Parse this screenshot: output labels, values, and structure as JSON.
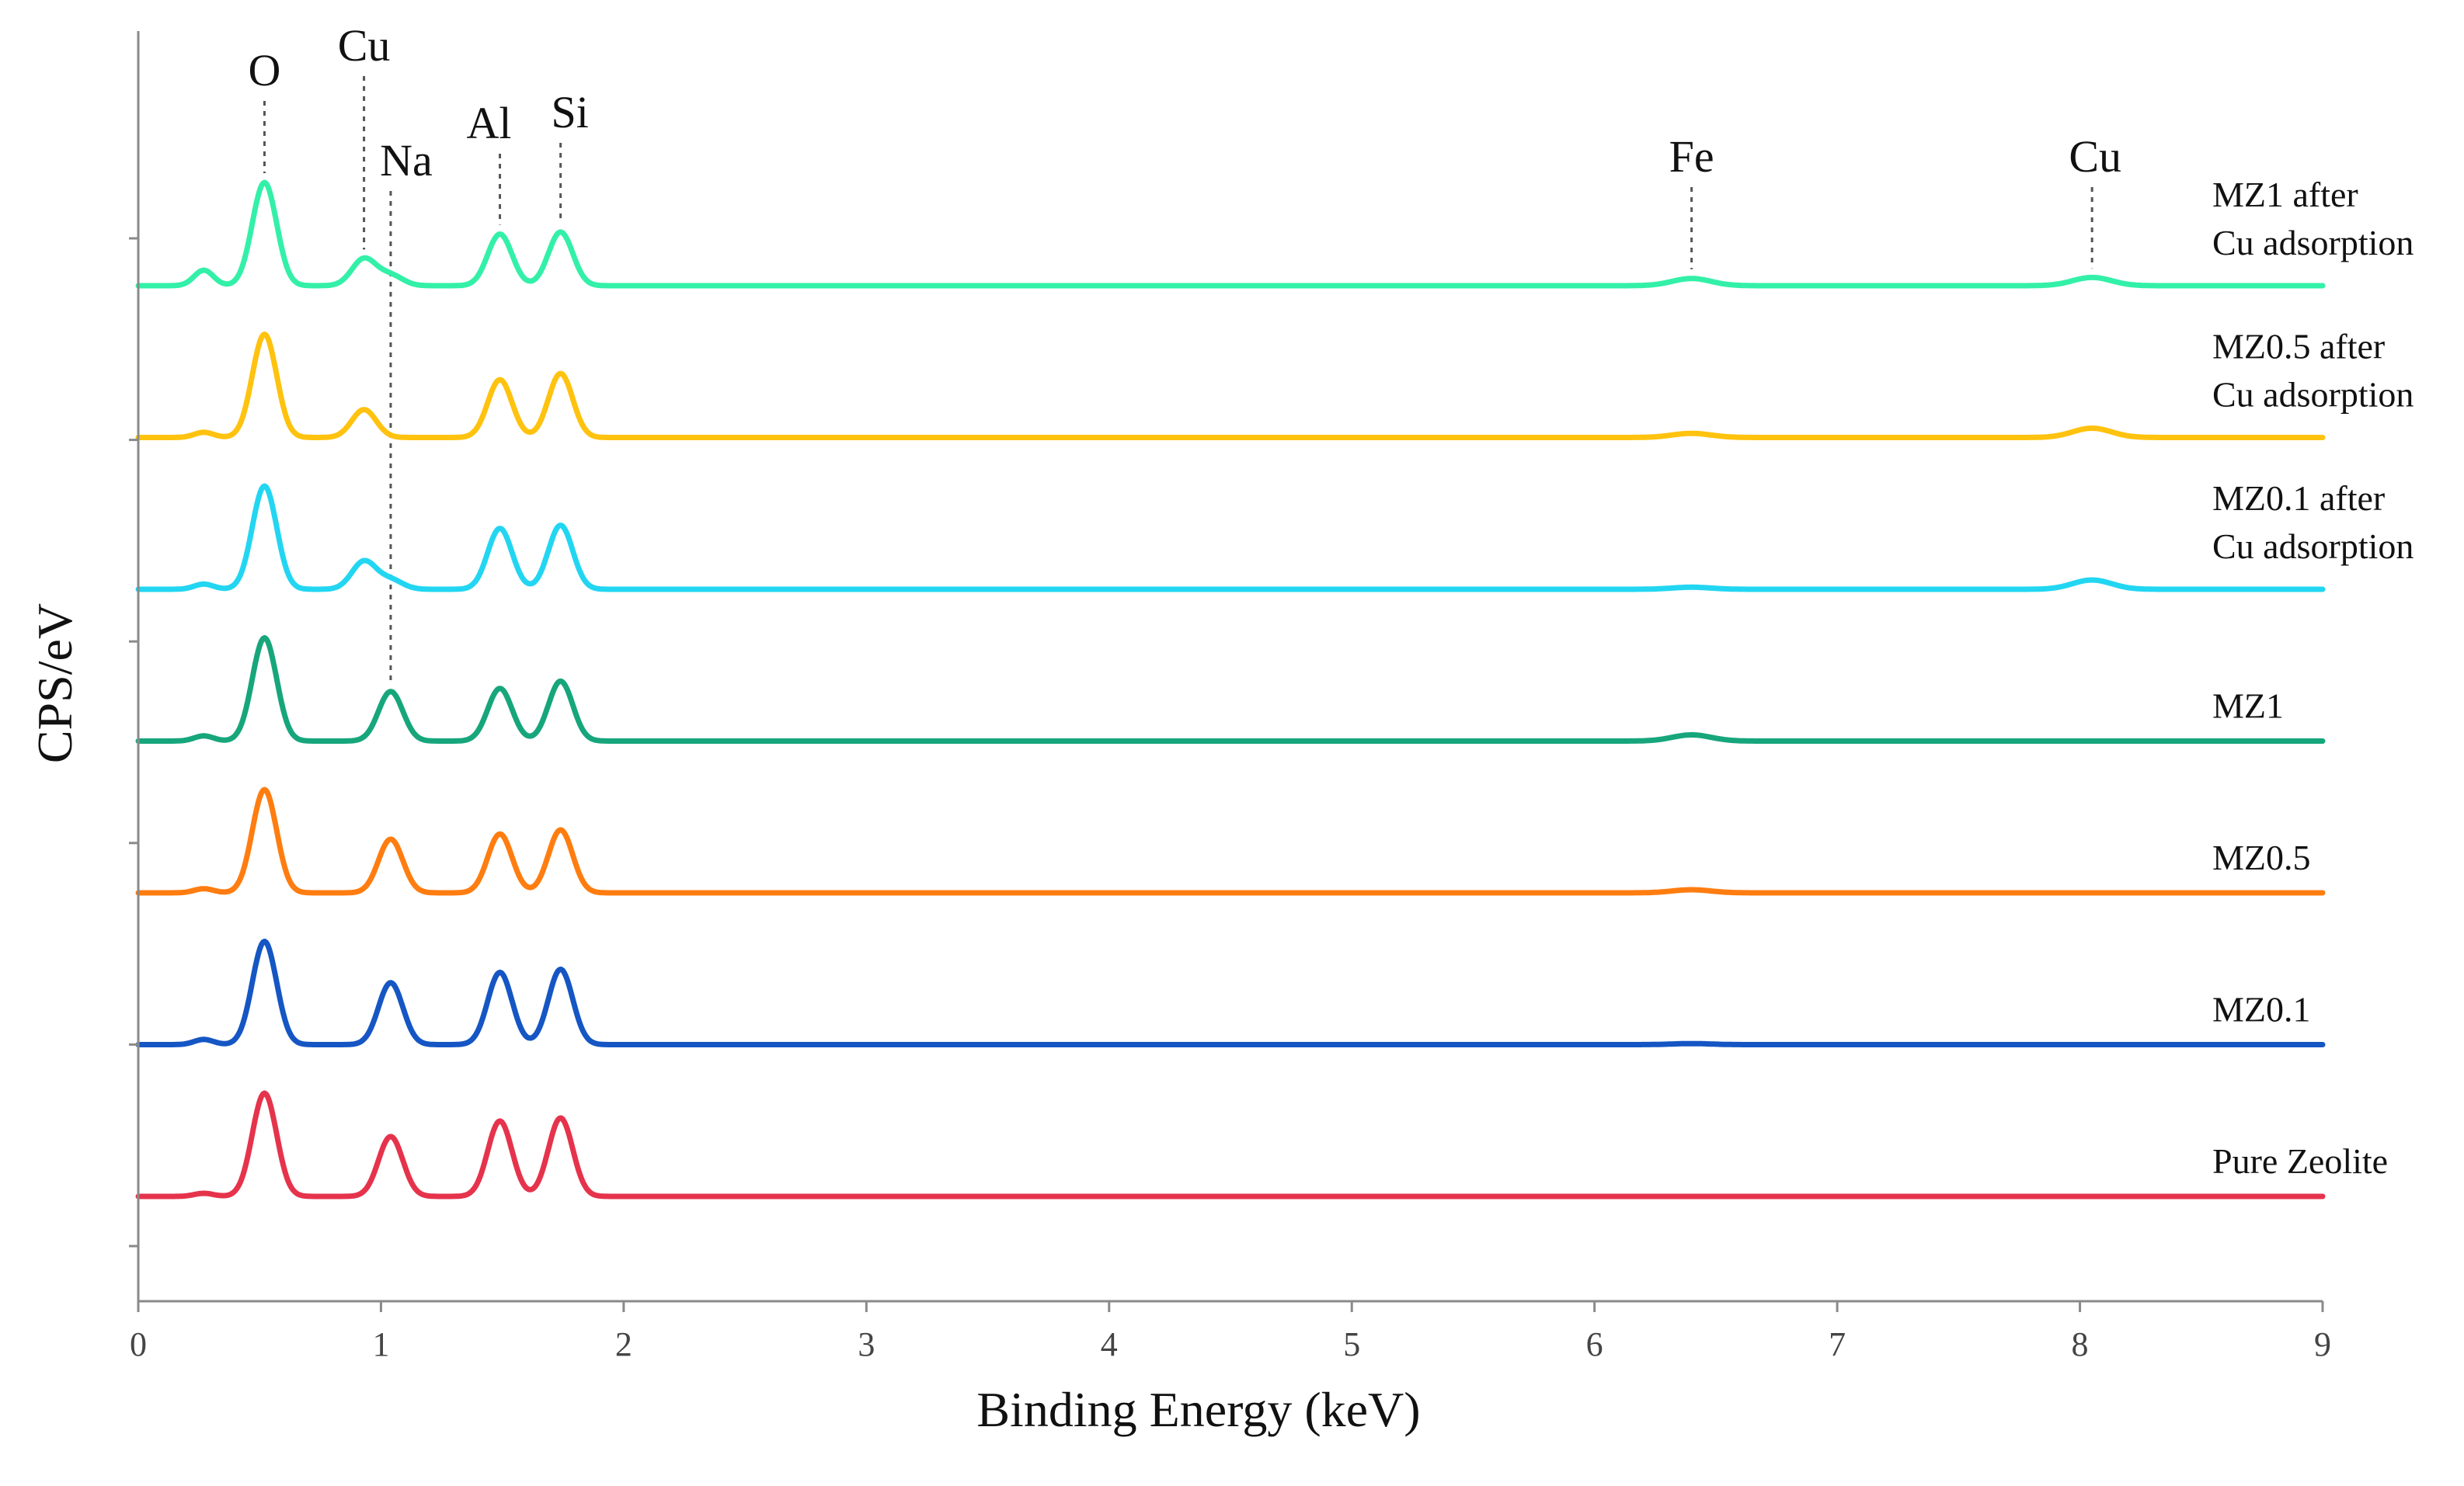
{
  "chart_data": {
    "type": "line",
    "title": "",
    "xlabel": "Binding Energy (keV)",
    "ylabel": "CPS/eV",
    "xlim": [
      0,
      9
    ],
    "xticks": [
      0,
      1,
      2,
      3,
      4,
      5,
      6,
      7,
      8,
      9
    ],
    "yticks_count": 6,
    "grid": false,
    "legend": "inline labels on right",
    "element_markers": [
      {
        "label": "O",
        "energy": 0.52,
        "guide_to": "MZ1 after Cu adsorption"
      },
      {
        "label": "Cu",
        "energy": 0.93,
        "guide_to": "MZ1 after Cu adsorption"
      },
      {
        "label": "Na",
        "energy": 1.04,
        "guide_to": "MZ1"
      },
      {
        "label": "Al",
        "energy": 1.49,
        "guide_to": "MZ1 after Cu adsorption"
      },
      {
        "label": "Si",
        "energy": 1.74,
        "guide_to": "MZ1 after Cu adsorption"
      },
      {
        "label": "Fe",
        "energy": 6.4,
        "guide_to": "MZ1 after Cu adsorption"
      },
      {
        "label": "Cu",
        "energy": 8.05,
        "guide_to": "MZ1 after Cu adsorption"
      }
    ],
    "series": [
      {
        "name": "MZ1 after Cu adsorption",
        "label_lines": [
          "MZ1 after",
          "Cu adsorption"
        ],
        "color": "#33f0a8",
        "peaks": [
          {
            "x": 0.27,
            "h": 0.15
          },
          {
            "x": 0.52,
            "h": 1.0
          },
          {
            "x": 0.93,
            "h": 0.26
          },
          {
            "x": 1.04,
            "h": 0.1
          },
          {
            "x": 1.49,
            "h": 0.5
          },
          {
            "x": 1.74,
            "h": 0.52
          },
          {
            "x": 6.4,
            "h": 0.07
          },
          {
            "x": 8.05,
            "h": 0.08
          }
        ]
      },
      {
        "name": "MZ0.5 after Cu adsorption",
        "label_lines": [
          "MZ0.5 after",
          "Cu adsorption"
        ],
        "color": "#ffc20e",
        "peaks": [
          {
            "x": 0.27,
            "h": 0.05
          },
          {
            "x": 0.52,
            "h": 1.0
          },
          {
            "x": 0.93,
            "h": 0.27
          },
          {
            "x": 1.49,
            "h": 0.56
          },
          {
            "x": 1.74,
            "h": 0.62
          },
          {
            "x": 6.4,
            "h": 0.04
          },
          {
            "x": 8.05,
            "h": 0.09
          }
        ]
      },
      {
        "name": "MZ0.1 after Cu adsorption",
        "label_lines": [
          "MZ0.1 after",
          "Cu adsorption"
        ],
        "color": "#22d6f2",
        "peaks": [
          {
            "x": 0.27,
            "h": 0.05
          },
          {
            "x": 0.52,
            "h": 1.0
          },
          {
            "x": 0.93,
            "h": 0.27
          },
          {
            "x": 1.04,
            "h": 0.09
          },
          {
            "x": 1.49,
            "h": 0.59
          },
          {
            "x": 1.74,
            "h": 0.62
          },
          {
            "x": 6.4,
            "h": 0.02
          },
          {
            "x": 8.05,
            "h": 0.09
          }
        ]
      },
      {
        "name": "MZ1",
        "label_lines": [
          "MZ1"
        ],
        "color": "#17a67c",
        "peaks": [
          {
            "x": 0.27,
            "h": 0.05
          },
          {
            "x": 0.52,
            "h": 1.0
          },
          {
            "x": 1.04,
            "h": 0.48
          },
          {
            "x": 1.49,
            "h": 0.51
          },
          {
            "x": 1.74,
            "h": 0.58
          },
          {
            "x": 6.4,
            "h": 0.06
          }
        ]
      },
      {
        "name": "MZ0.5",
        "label_lines": [
          "MZ0.5"
        ],
        "color": "#ff7d10",
        "peaks": [
          {
            "x": 0.27,
            "h": 0.04
          },
          {
            "x": 0.52,
            "h": 1.0
          },
          {
            "x": 1.04,
            "h": 0.52
          },
          {
            "x": 1.49,
            "h": 0.57
          },
          {
            "x": 1.74,
            "h": 0.61
          },
          {
            "x": 6.4,
            "h": 0.03
          }
        ]
      },
      {
        "name": "MZ0.1",
        "label_lines": [
          "MZ0.1"
        ],
        "color": "#1556c4",
        "peaks": [
          {
            "x": 0.27,
            "h": 0.05
          },
          {
            "x": 0.52,
            "h": 1.0
          },
          {
            "x": 1.04,
            "h": 0.6
          },
          {
            "x": 1.49,
            "h": 0.7
          },
          {
            "x": 1.74,
            "h": 0.73
          },
          {
            "x": 6.4,
            "h": 0.01
          }
        ]
      },
      {
        "name": "Pure Zeolite",
        "label_lines": [
          "Pure Zeolite"
        ],
        "color": "#e6334c",
        "peaks": [
          {
            "x": 0.27,
            "h": 0.03
          },
          {
            "x": 0.52,
            "h": 1.0
          },
          {
            "x": 1.04,
            "h": 0.58
          },
          {
            "x": 1.49,
            "h": 0.73
          },
          {
            "x": 1.74,
            "h": 0.76
          }
        ]
      }
    ]
  }
}
